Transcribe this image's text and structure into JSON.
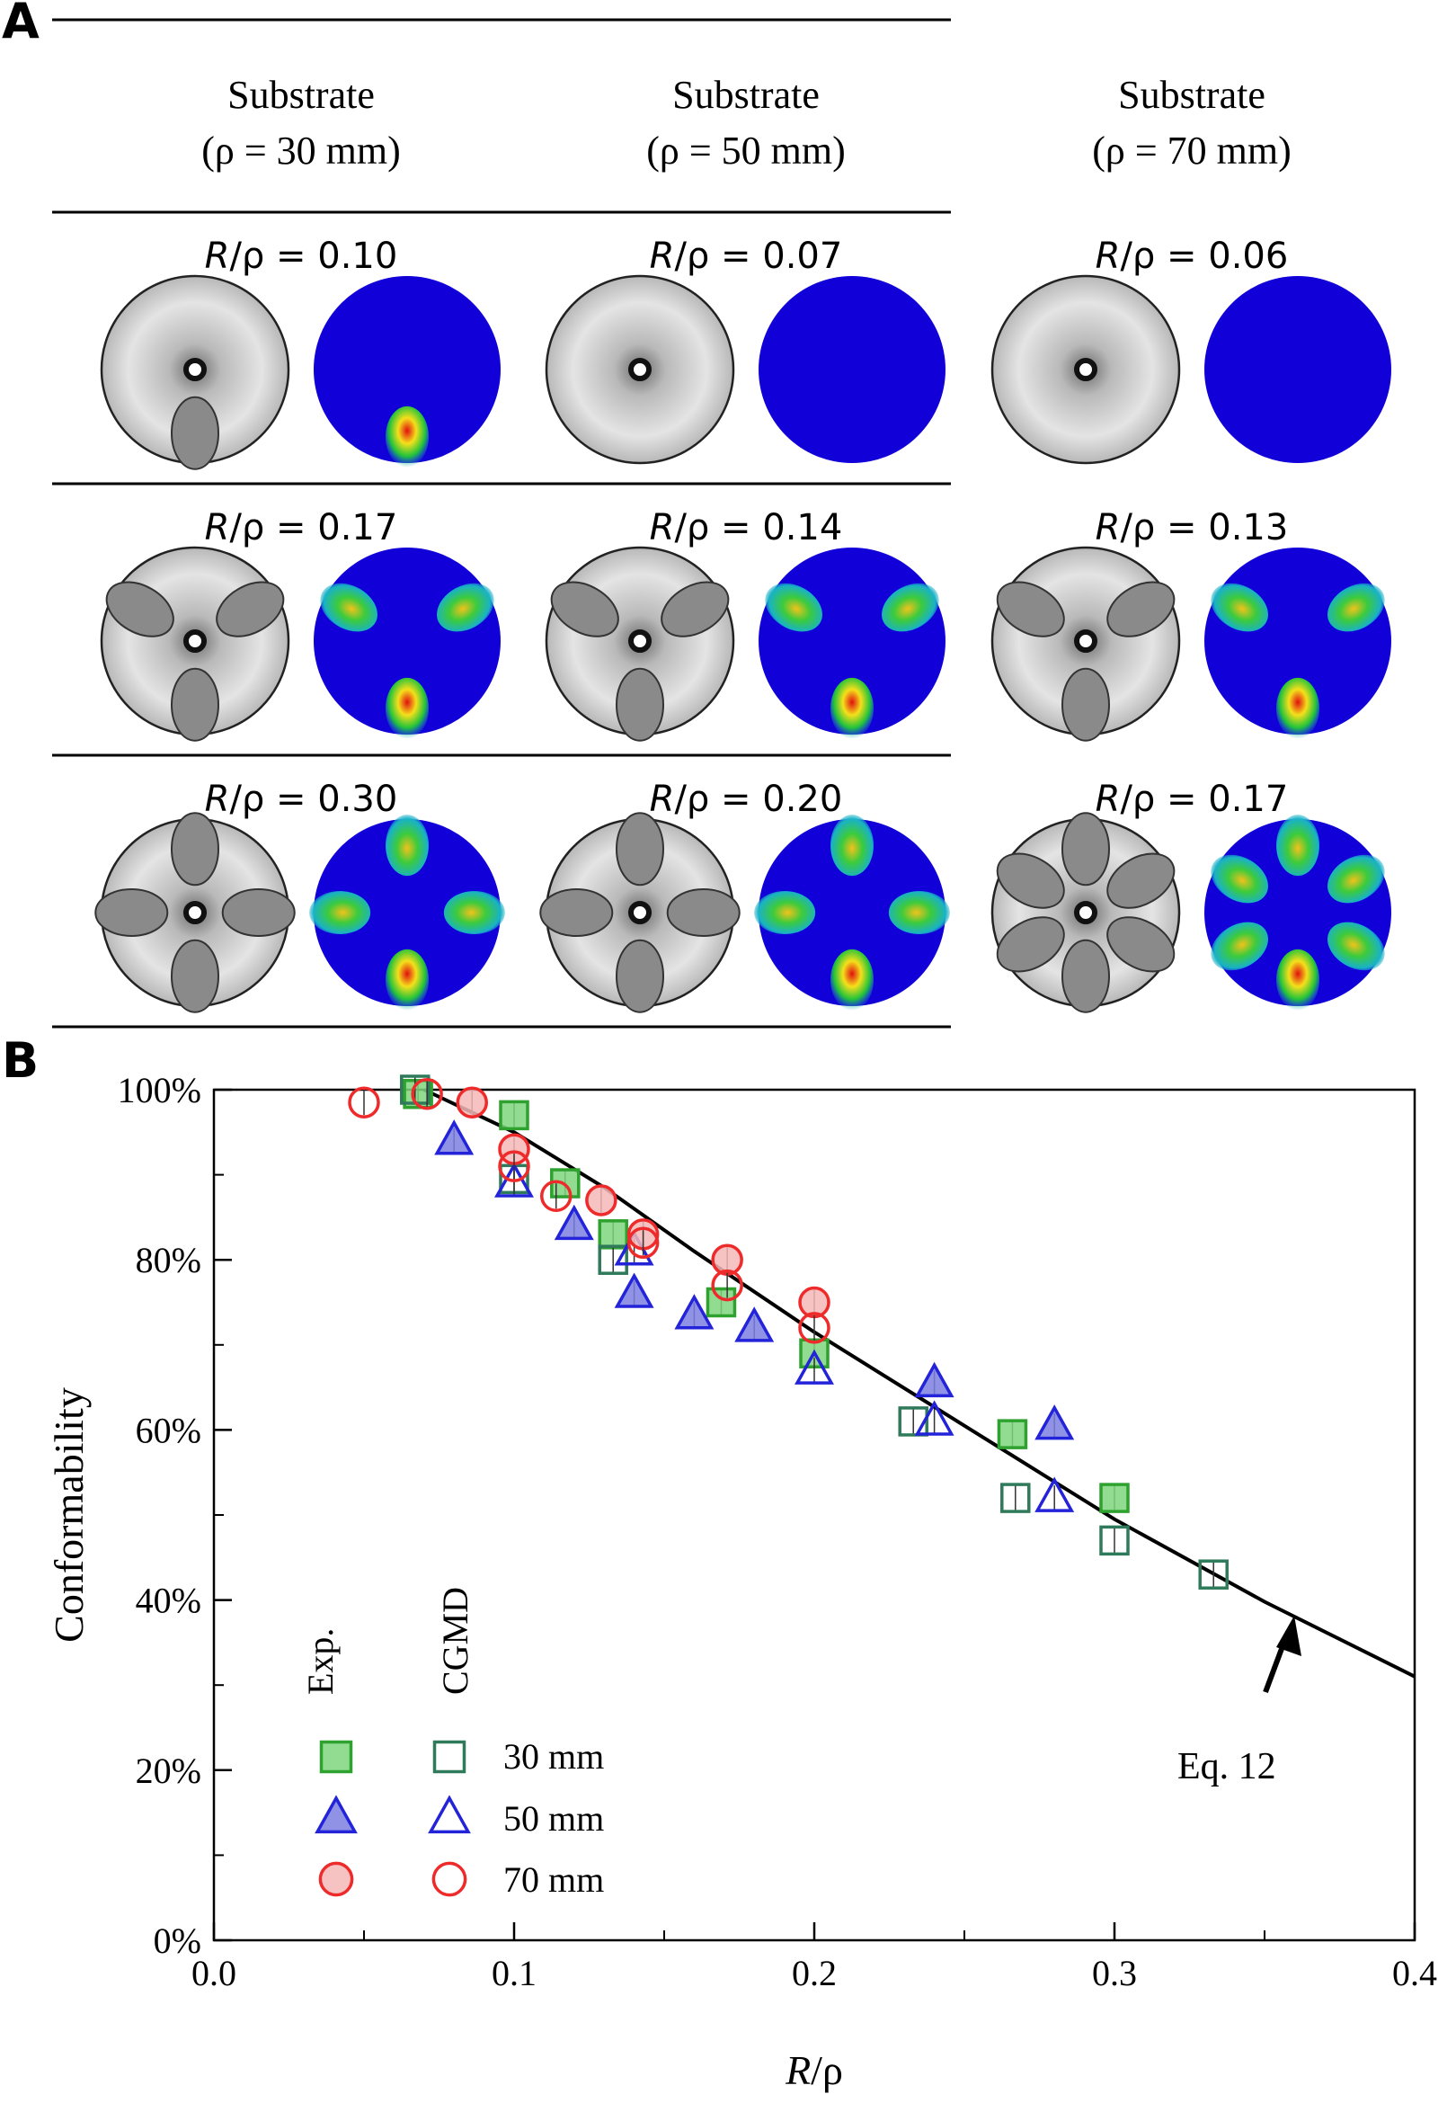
{
  "panel_a": {
    "letter": "A",
    "columns": [
      {
        "title": "Substrate",
        "subtitle": "(ρ = 30 mm)"
      },
      {
        "title": "Substrate",
        "subtitle": "(ρ = 50 mm)"
      },
      {
        "title": "Substrate",
        "subtitle": "(ρ = 70 mm)"
      }
    ],
    "ratio_prefix": "R",
    "ratio_suffix": "/ρ = ",
    "rows": [
      {
        "cells": [
          {
            "ratio": "0.10",
            "blobs": 1
          },
          {
            "ratio": "0.07",
            "blobs": 0
          },
          {
            "ratio": "0.06",
            "blobs": 0
          }
        ]
      },
      {
        "cells": [
          {
            "ratio": "0.17",
            "blobs": 3
          },
          {
            "ratio": "0.14",
            "blobs": 3
          },
          {
            "ratio": "0.13",
            "blobs": 3
          }
        ]
      },
      {
        "cells": [
          {
            "ratio": "0.30",
            "blobs": 4
          },
          {
            "ratio": "0.20",
            "blobs": 4
          },
          {
            "ratio": "0.17",
            "blobs": 6
          }
        ]
      }
    ]
  },
  "chart_data": {
    "panel_letter": "B",
    "type": "scatter",
    "xlabel_italic": "R",
    "xlabel_rest": "/ρ",
    "ylabel": "Conformability",
    "xlim": [
      0.0,
      0.4
    ],
    "ylim": [
      0,
      100
    ],
    "x_ticks": [
      "0.0",
      "0.1",
      "0.2",
      "0.3",
      "0.4"
    ],
    "y_ticks": [
      "0%",
      "20%",
      "40%",
      "60%",
      "80%",
      "100%"
    ],
    "legend_headers": [
      "Exp.",
      "CGMD"
    ],
    "legend_labels": [
      "30 mm",
      "50 mm",
      "70 mm"
    ],
    "annotation": "Eq. 12",
    "colors": {
      "green_fill": "#7ed67e",
      "green_edge": "#2ea12e",
      "cgmd_green": "#2f7a5a",
      "blue_fill": "#7b7fe0",
      "blue_edge": "#2323d9",
      "red_fill": "#f4b7b7",
      "red_edge": "#ee2a2a",
      "curve": "#000000"
    },
    "series": [
      {
        "name": "Exp. 30 mm",
        "marker": "square",
        "filled": true,
        "points": [
          [
            0.068,
            99.5
          ],
          [
            0.1,
            97
          ],
          [
            0.117,
            89
          ],
          [
            0.133,
            83
          ],
          [
            0.169,
            75
          ],
          [
            0.2,
            69
          ],
          [
            0.266,
            59.5
          ],
          [
            0.3,
            52
          ]
        ]
      },
      {
        "name": "CGMD 30 mm",
        "marker": "square",
        "filled": false,
        "points": [
          [
            0.067,
            100
          ],
          [
            0.1,
            89.5
          ],
          [
            0.133,
            80
          ],
          [
            0.233,
            61
          ],
          [
            0.267,
            52
          ],
          [
            0.3,
            47
          ],
          [
            0.333,
            43
          ]
        ]
      },
      {
        "name": "Exp. 50 mm",
        "marker": "triangle",
        "filled": true,
        "points": [
          [
            0.08,
            94
          ],
          [
            0.12,
            84
          ],
          [
            0.14,
            76
          ],
          [
            0.16,
            73.5
          ],
          [
            0.18,
            72
          ],
          [
            0.24,
            65.5
          ],
          [
            0.28,
            60.5
          ]
        ]
      },
      {
        "name": "CGMD 50 mm",
        "marker": "triangle",
        "filled": false,
        "points": [
          [
            0.1,
            89
          ],
          [
            0.14,
            81
          ],
          [
            0.2,
            67
          ],
          [
            0.24,
            61
          ],
          [
            0.28,
            52
          ]
        ]
      },
      {
        "name": "Exp. 70 mm",
        "marker": "circle",
        "filled": true,
        "points": [
          [
            0.086,
            98.5
          ],
          [
            0.1,
            93
          ],
          [
            0.129,
            87
          ],
          [
            0.143,
            83
          ],
          [
            0.171,
            80
          ],
          [
            0.2,
            75
          ]
        ]
      },
      {
        "name": "CGMD 70 mm",
        "marker": "circle",
        "filled": false,
        "points": [
          [
            0.05,
            98.5
          ],
          [
            0.071,
            99.5
          ],
          [
            0.1,
            91
          ],
          [
            0.114,
            87.5
          ],
          [
            0.143,
            82
          ],
          [
            0.171,
            77
          ],
          [
            0.2,
            72
          ]
        ]
      }
    ],
    "curve": {
      "name": "Eq. 12",
      "points": [
        [
          0.07,
          100
        ],
        [
          0.1,
          95
        ],
        [
          0.13,
          88.5
        ],
        [
          0.16,
          81
        ],
        [
          0.2,
          71.5
        ],
        [
          0.25,
          60.5
        ],
        [
          0.3,
          49.5
        ],
        [
          0.35,
          39.8
        ],
        [
          0.4,
          31
        ]
      ]
    }
  }
}
